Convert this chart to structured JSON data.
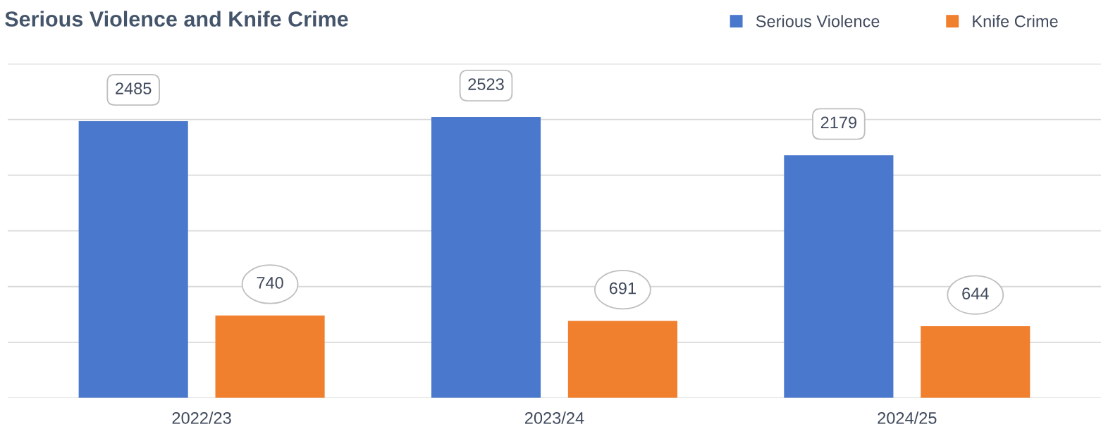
{
  "chart_data": {
    "type": "bar",
    "title": "Serious Violence and Knife Crime",
    "categories": [
      "2022/23",
      "2023/24",
      "2024/25"
    ],
    "series": [
      {
        "name": "Serious Violence",
        "color": "#4a78cc",
        "values": [
          2485,
          2523,
          2179
        ]
      },
      {
        "name": "Knife Crime",
        "color": "#f07f2e",
        "values": [
          740,
          691,
          644
        ]
      }
    ],
    "ylim": [
      0,
      3000
    ],
    "yticks": [
      {
        "value": 0,
        "label": null
      },
      {
        "value": 500,
        "label": null
      },
      {
        "value": 1000,
        "label": null
      },
      {
        "value": 1500,
        "label": null
      },
      {
        "value": 2000,
        "label": null
      },
      {
        "value": 2500,
        "label": null
      },
      {
        "value": 3000,
        "label": null
      }
    ],
    "tick_labels": "x",
    "grid": "y",
    "legend": "top right",
    "data_labels": true
  }
}
